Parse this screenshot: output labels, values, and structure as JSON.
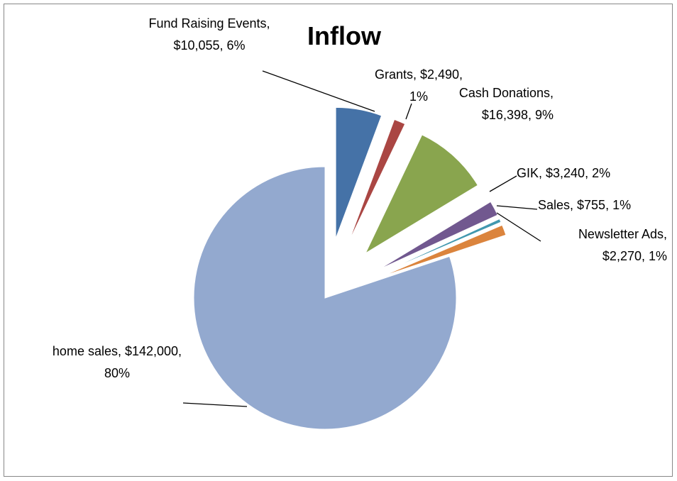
{
  "chart_data": {
    "type": "pie",
    "title": "Inflow",
    "categories": [
      "Fund Raising Events",
      "Grants",
      "Cash Donations",
      "GIK",
      "Sales",
      "Newsletter Ads",
      "home sales"
    ],
    "values": [
      10055,
      2490,
      16398,
      3240,
      755,
      2270,
      142000
    ],
    "value_labels": [
      "Fund Raising Events, $10,055, 6%",
      "Grants, $2,490, 1%",
      "Cash Donations, $16,398, 9%",
      "GIK, $3,240, 2%",
      "Sales, $755, 1%",
      "Newsletter Ads, $2,270, 1%",
      "home sales, $142,000, 80%"
    ],
    "colors": [
      "#4572a7",
      "#aa4643",
      "#89a54e",
      "#71588f",
      "#4198af",
      "#db843d",
      "#93a9cf"
    ]
  }
}
